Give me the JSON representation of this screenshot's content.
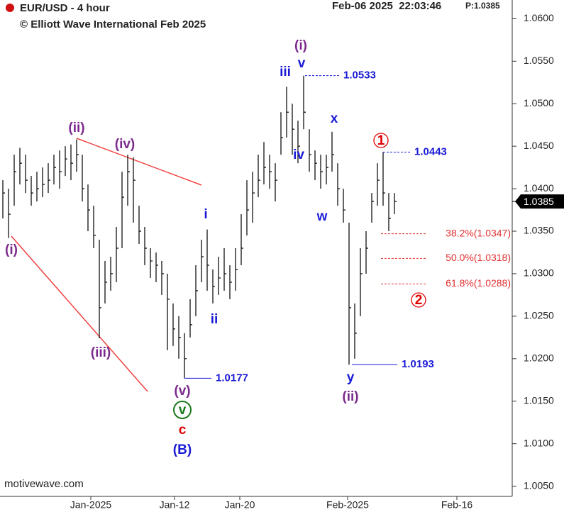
{
  "chart_data": {
    "type": "ohlc",
    "title": "EUR/USD - 4 hour",
    "subtitle": "© Elliott Wave International Feb 2025",
    "timestamp": "Feb-06 2025  22:03:46",
    "price_label": "P:1.0385",
    "footer": "motivewave.com",
    "color": "#111111",
    "x": [
      0,
      1,
      2,
      3,
      4,
      5,
      6,
      7,
      8,
      9,
      10,
      11,
      12,
      13,
      14,
      15,
      16,
      17,
      18,
      19,
      20,
      21,
      22,
      23,
      24,
      25,
      26,
      27,
      28,
      29,
      30,
      31,
      32,
      33,
      34,
      35,
      36,
      37,
      38,
      39,
      40,
      41,
      42,
      43,
      44,
      45,
      46,
      47,
      48,
      49,
      50,
      51,
      52,
      53,
      54,
      55,
      56,
      57,
      58,
      59,
      60,
      61,
      62,
      63,
      64,
      65,
      66,
      67,
      68,
      69
    ],
    "series": [
      {
        "name": "high",
        "values": [
          1.041,
          1.04,
          1.044,
          1.0448,
          1.044,
          1.0415,
          1.042,
          1.0425,
          1.043,
          1.044,
          1.0445,
          1.045,
          1.0452,
          1.0458,
          1.044,
          1.0405,
          1.038,
          1.034,
          1.0315,
          1.032,
          1.0355,
          1.042,
          1.044,
          1.0437,
          1.038,
          1.0355,
          1.033,
          1.0325,
          1.0315,
          1.03,
          1.0265,
          1.025,
          1.023,
          1.027,
          1.031,
          1.034,
          1.0352,
          1.0305,
          1.032,
          1.033,
          1.031,
          1.033,
          1.037,
          1.041,
          1.042,
          1.044,
          1.0455,
          1.044,
          1.043,
          1.049,
          1.052,
          1.05,
          1.048,
          1.0533,
          1.047,
          1.0445,
          1.044,
          1.044,
          1.0467,
          1.043,
          1.04,
          1.036,
          1.0265,
          1.033,
          1.035,
          1.0395,
          1.043,
          1.0443,
          1.0395,
          1.0395
        ]
      },
      {
        "name": "low",
        "values": [
          1.0365,
          1.0342,
          1.038,
          1.0405,
          1.0395,
          1.038,
          1.0385,
          1.039,
          1.0395,
          1.0405,
          1.04,
          1.0415,
          1.041,
          1.042,
          1.0385,
          1.035,
          1.033,
          1.0224,
          1.0265,
          1.028,
          1.029,
          1.033,
          1.038,
          1.036,
          1.0335,
          1.031,
          1.0295,
          1.029,
          1.0275,
          1.021,
          1.0215,
          1.02,
          1.0177,
          1.0225,
          1.025,
          1.029,
          1.028,
          1.0265,
          1.0275,
          1.028,
          1.027,
          1.028,
          1.031,
          1.0345,
          1.036,
          1.039,
          1.0405,
          1.04,
          1.0385,
          1.044,
          1.046,
          1.044,
          1.043,
          1.047,
          1.042,
          1.041,
          1.04,
          1.0405,
          1.042,
          1.038,
          1.036,
          1.0193,
          1.02,
          1.025,
          1.03,
          1.036,
          1.038,
          1.038,
          1.035,
          1.037
        ]
      },
      {
        "name": "close",
        "values": [
          1.0395,
          1.037,
          1.042,
          1.043,
          1.041,
          1.0395,
          1.04,
          1.0405,
          1.041,
          1.0425,
          1.042,
          1.0435,
          1.043,
          1.044,
          1.04,
          1.0375,
          1.0345,
          1.026,
          1.029,
          1.03,
          1.033,
          1.039,
          1.042,
          1.041,
          1.035,
          1.033,
          1.0315,
          1.031,
          1.03,
          1.027,
          1.0235,
          1.0225,
          1.02,
          1.024,
          1.028,
          1.032,
          1.031,
          1.0285,
          1.0295,
          1.03,
          1.029,
          1.0305,
          1.033,
          1.0375,
          1.0395,
          1.041,
          1.0425,
          1.042,
          1.041,
          1.046,
          1.049,
          1.047,
          1.045,
          1.049,
          1.044,
          1.043,
          1.042,
          1.0425,
          1.044,
          1.04,
          1.0375,
          1.026,
          1.023,
          1.03,
          1.033,
          1.0385,
          1.041,
          1.0395,
          1.0365,
          1.0385
        ]
      }
    ],
    "last_price": 1.0385,
    "xlim": [
      -0.5,
      89.75
    ],
    "xticks": [
      {
        "value": 15.5,
        "label": "Jan-2025"
      },
      {
        "value": 30.25,
        "label": "Jan-12"
      },
      {
        "value": 41.75,
        "label": "Jan-20"
      },
      {
        "value": 60.75,
        "label": "Feb-2025"
      },
      {
        "value": 80,
        "label": "Feb-16"
      }
    ],
    "ylim": [
      1.0038,
      1.0622
    ],
    "yticks": [
      {
        "value": 1.005,
        "label": "1.0050"
      },
      {
        "value": 1.01,
        "label": "1.0100"
      },
      {
        "value": 1.015,
        "label": "1.0150"
      },
      {
        "value": 1.02,
        "label": "1.0200"
      },
      {
        "value": 1.025,
        "label": "1.0250"
      },
      {
        "value": 1.03,
        "label": "1.0300"
      },
      {
        "value": 1.035,
        "label": "1.0350"
      },
      {
        "value": 1.04,
        "label": "1.0400"
      },
      {
        "value": 1.045,
        "label": "1.0450"
      },
      {
        "value": 1.05,
        "label": "1.0500"
      },
      {
        "value": 1.055,
        "label": "1.0550"
      },
      {
        "value": 1.06,
        "label": "1.0600"
      }
    ],
    "levels": [
      1.0533,
      1.0443,
      1.0177,
      1.0193
    ],
    "fib_levels": [
      {
        "value": 1.0347,
        "label": "38.2%(1.0347)"
      },
      {
        "value": 1.0318,
        "label": "50.0%(1.0318)"
      },
      {
        "value": 1.0288,
        "label": "61.8%(1.0288)"
      }
    ],
    "annotations": [
      {
        "text": "(i)",
        "color": "#7b2a8c"
      },
      {
        "text": "(ii)",
        "color": "#7b2a8c"
      },
      {
        "text": "(iv)",
        "color": "#7b2a8c"
      },
      {
        "text": "(iii)",
        "color": "#7b2a8c"
      },
      {
        "text": "(v)",
        "color": "#7b2a8c"
      },
      {
        "text": "v",
        "color": "#1a7a1a"
      },
      {
        "text": "c",
        "color": "#e00000"
      },
      {
        "text": "(B)",
        "color": "#1a1ad6"
      },
      {
        "text": "i",
        "color": "#1a1ad6"
      },
      {
        "text": "ii",
        "color": "#1a1ad6"
      },
      {
        "text": "iii",
        "color": "#1a1ad6"
      },
      {
        "text": "v",
        "color": "#1a1ad6"
      },
      {
        "text": "(i)",
        "color": "#7b2a8c"
      },
      {
        "text": "iv",
        "color": "#1a1ad6"
      },
      {
        "text": "x",
        "color": "#1a1ad6"
      },
      {
        "text": "w",
        "color": "#1a1ad6"
      },
      {
        "text": "y",
        "color": "#1a1ad6"
      },
      {
        "text": "(ii)",
        "color": "#7b2a8c"
      },
      {
        "text": "1",
        "color": "#e00000"
      },
      {
        "text": "2",
        "color": "#e00000"
      }
    ]
  }
}
